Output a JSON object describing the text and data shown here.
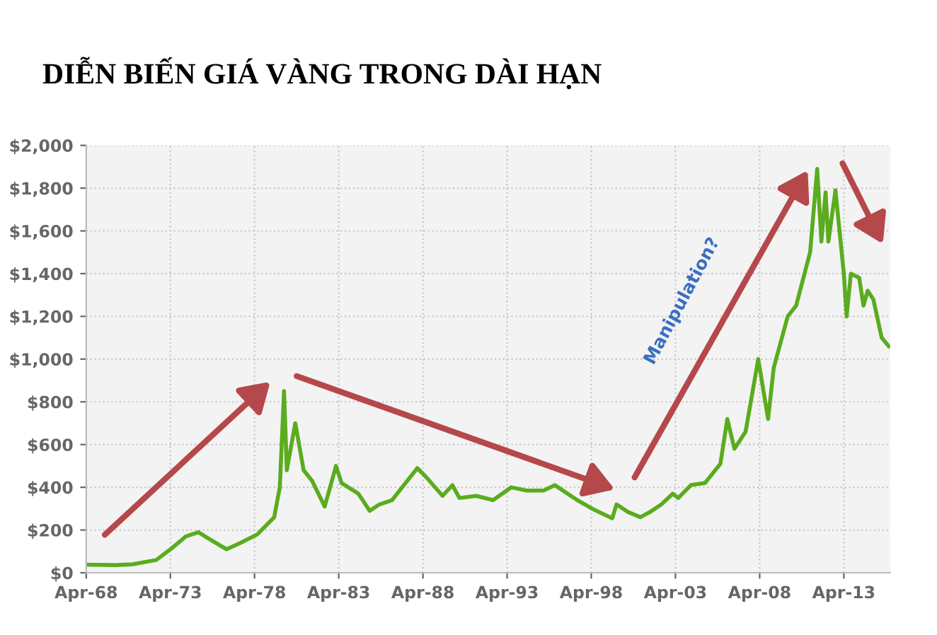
{
  "chart_data": {
    "type": "line",
    "title": "DIỄN BIẾN GIÁ VÀNG TRONG DÀI HẠN",
    "x": [
      "1968-04",
      "1970-01",
      "1971-01",
      "1972-06",
      "1973-06",
      "1974-03",
      "1974-12",
      "1975-06",
      "1976-08",
      "1977-06",
      "1978-06",
      "1979-06",
      "1979-10",
      "1980-01",
      "1980-03",
      "1980-09",
      "1981-03",
      "1981-09",
      "1982-06",
      "1983-02",
      "1983-06",
      "1984-06",
      "1985-02",
      "1985-09",
      "1986-06",
      "1987-12",
      "1988-06",
      "1989-06",
      "1990-01",
      "1990-06",
      "1991-06",
      "1992-06",
      "1993-07",
      "1994-06",
      "1995-06",
      "1996-02",
      "1997-06",
      "1998-06",
      "1999-07",
      "1999-10",
      "2000-06",
      "2001-03",
      "2001-10",
      "2002-06",
      "2003-02",
      "2003-06",
      "2004-03",
      "2005-01",
      "2005-12",
      "2006-05",
      "2006-10",
      "2007-06",
      "2008-03",
      "2008-10",
      "2009-02",
      "2009-12",
      "2010-06",
      "2011-04",
      "2011-09",
      "2011-12",
      "2012-03",
      "2012-05",
      "2012-10",
      "2013-04",
      "2013-06",
      "2013-09",
      "2014-03",
      "2014-06",
      "2014-09",
      "2015-01",
      "2015-07",
      "2015-12"
    ],
    "series": [
      {
        "color": "#5aac1e",
        "values": [
          38,
          36,
          40,
          60,
          120,
          170,
          190,
          165,
          110,
          140,
          180,
          260,
          400,
          850,
          480,
          700,
          480,
          430,
          310,
          500,
          420,
          370,
          290,
          320,
          340,
          490,
          450,
          360,
          410,
          350,
          360,
          340,
          400,
          385,
          385,
          410,
          340,
          295,
          255,
          320,
          285,
          260,
          285,
          320,
          370,
          350,
          410,
          420,
          510,
          720,
          580,
          660,
          1000,
          720,
          960,
          1200,
          1250,
          1500,
          1890,
          1550,
          1780,
          1550,
          1790,
          1400,
          1200,
          1400,
          1380,
          1250,
          1320,
          1280,
          1100,
          1060
        ]
      }
    ],
    "xlim": [
      "1968-04",
      "2016-01"
    ],
    "xticks": [
      {
        "value": "1968-04",
        "label": "Apr-68"
      },
      {
        "value": "1973-04",
        "label": "Apr-73"
      },
      {
        "value": "1978-04",
        "label": "Apr-78"
      },
      {
        "value": "1983-04",
        "label": "Apr-83"
      },
      {
        "value": "1988-04",
        "label": "Apr-88"
      },
      {
        "value": "1993-04",
        "label": "Apr-93"
      },
      {
        "value": "1998-04",
        "label": "Apr-98"
      },
      {
        "value": "2003-04",
        "label": "Apr-03"
      },
      {
        "value": "2008-04",
        "label": "Apr-08"
      },
      {
        "value": "2013-04",
        "label": "Apr-13"
      }
    ],
    "ylim": [
      0,
      2000
    ],
    "yticks": [
      {
        "value": 0,
        "label": "$0"
      },
      {
        "value": 200,
        "label": "$200"
      },
      {
        "value": 400,
        "label": "$400"
      },
      {
        "value": 600,
        "label": "$600"
      },
      {
        "value": 800,
        "label": "$800"
      },
      {
        "value": 1000,
        "label": "$1,000"
      },
      {
        "value": 1200,
        "label": "$1,200"
      },
      {
        "value": 1400,
        "label": "$1,400"
      },
      {
        "value": 1600,
        "label": "$1,600"
      },
      {
        "value": 1800,
        "label": "$1,800"
      },
      {
        "value": 2000,
        "label": "$2,000"
      }
    ],
    "grid": true,
    "annotations": [
      "Manipulation?"
    ]
  }
}
